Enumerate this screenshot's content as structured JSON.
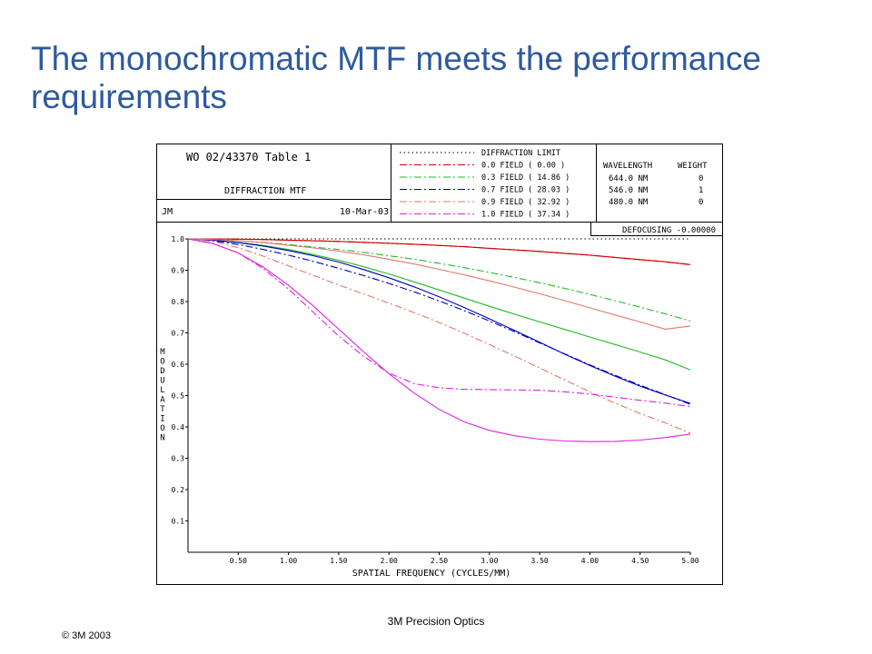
{
  "slide": {
    "title": "The monochromatic MTF meets the performance requirements",
    "footer_left": "© 3M 2003",
    "footer_center": "3M Precision Optics"
  },
  "plot_header": {
    "title": "WO 02/43370 Table 1",
    "subtitle": "DIFFRACTION MTF",
    "author": "JM",
    "date": "10-Mar-03",
    "defocusing": "DEFOCUSING -0.00000",
    "wavelength_header": "WAVELENGTH",
    "weight_header": "WEIGHT",
    "wavelengths": [
      {
        "wavelength": "644.0 NM",
        "weight": "0"
      },
      {
        "wavelength": "546.0 NM",
        "weight": "1"
      },
      {
        "wavelength": "480.0 NM",
        "weight": "0"
      }
    ],
    "legend": [
      {
        "label": "DIFFRACTION LIMIT",
        "color": "#000000"
      },
      {
        "label": "0.0 FIELD ( 0.00 )",
        "color": "#cc0000"
      },
      {
        "label": "0.3 FIELD ( 14.86 )",
        "color": "#22bb22"
      },
      {
        "label": "0.7 FIELD ( 28.03 )",
        "color": "#0000bb"
      },
      {
        "label": "0.9 FIELD ( 32.92 )",
        "color": "#e0786e"
      },
      {
        "label": "1.0 FIELD ( 37.34 )",
        "color": "#dd22dd"
      }
    ]
  },
  "chart_data": {
    "type": "line",
    "xlabel": "SPATIAL FREQUENCY (CYCLES/MM)",
    "ylabel": "MODULATION",
    "xlim": [
      0,
      5.0
    ],
    "ylim": [
      0,
      1.0
    ],
    "xticks": [
      "0.50",
      "1.00",
      "1.50",
      "2.00",
      "2.50",
      "3.00",
      "3.50",
      "4.00",
      "4.50",
      "5.00"
    ],
    "xtick_values": [
      0.5,
      1.0,
      1.5,
      2.0,
      2.5,
      3.0,
      3.5,
      4.0,
      4.5,
      5.0
    ],
    "yticks": [
      "0.1",
      "0.2",
      "0.3",
      "0.4",
      "0.5",
      "0.6",
      "0.7",
      "0.8",
      "0.9",
      "1.0"
    ],
    "ytick_values": [
      0.1,
      0.2,
      0.3,
      0.4,
      0.5,
      0.6,
      0.7,
      0.8,
      0.9,
      1.0
    ],
    "x": [
      0,
      0.25,
      0.5,
      0.75,
      1.0,
      1.25,
      1.5,
      1.75,
      2.0,
      2.25,
      2.5,
      2.75,
      3.0,
      3.25,
      3.5,
      3.75,
      4.0,
      4.25,
      4.5,
      4.75,
      5.0
    ],
    "series": [
      {
        "name": "DIFFRACTION LIMIT",
        "color": "#000000",
        "style": "dotted",
        "values": [
          1.0,
          1.0,
          1.0,
          1.0,
          1.0,
          1.0,
          1.0,
          1.0,
          1.0,
          1.0,
          1.0,
          1.0,
          1.0,
          1.0,
          1.0,
          1.0,
          1.0,
          1.0,
          1.0,
          1.0,
          1.0
        ]
      },
      {
        "name": "0.0 FIELD ( 0.00 ) tangential",
        "color": "#cc0000",
        "style": "solid",
        "values": [
          1.0,
          1.0,
          0.999,
          0.998,
          0.996,
          0.994,
          0.992,
          0.989,
          0.986,
          0.983,
          0.979,
          0.975,
          0.97,
          0.965,
          0.96,
          0.954,
          0.948,
          0.941,
          0.934,
          0.927,
          0.918
        ]
      },
      {
        "name": "0.0 FIELD ( 0.00 ) sagittal",
        "color": "#cc0000",
        "style": "dashdot",
        "values": [
          1.0,
          1.0,
          0.999,
          0.998,
          0.996,
          0.994,
          0.992,
          0.989,
          0.986,
          0.983,
          0.979,
          0.975,
          0.97,
          0.965,
          0.96,
          0.954,
          0.948,
          0.941,
          0.934,
          0.927,
          0.918
        ]
      },
      {
        "name": "0.3 FIELD ( 14.86 ) tangential",
        "color": "#22bb22",
        "style": "solid",
        "values": [
          1.0,
          0.996,
          0.989,
          0.979,
          0.966,
          0.95,
          0.932,
          0.911,
          0.888,
          0.863,
          0.837,
          0.811,
          0.785,
          0.76,
          0.735,
          0.711,
          0.687,
          0.663,
          0.639,
          0.614,
          0.582
        ]
      },
      {
        "name": "0.3 FIELD ( 14.86 ) sagittal",
        "color": "#22bb22",
        "style": "dashdot",
        "values": [
          1.0,
          0.998,
          0.994,
          0.989,
          0.982,
          0.974,
          0.966,
          0.957,
          0.946,
          0.935,
          0.922,
          0.908,
          0.893,
          0.877,
          0.86,
          0.842,
          0.823,
          0.803,
          0.782,
          0.761,
          0.738
        ]
      },
      {
        "name": "0.7 FIELD ( 28.03 ) tangential",
        "color": "#0000bb",
        "style": "solid",
        "values": [
          1.0,
          0.996,
          0.988,
          0.977,
          0.963,
          0.946,
          0.926,
          0.902,
          0.876,
          0.847,
          0.815,
          0.781,
          0.745,
          0.708,
          0.67,
          0.632,
          0.596,
          0.562,
          0.53,
          0.502,
          0.475
        ]
      },
      {
        "name": "0.7 FIELD ( 28.03 ) sagittal",
        "color": "#0000bb",
        "style": "dashdot",
        "values": [
          1.0,
          0.994,
          0.982,
          0.966,
          0.948,
          0.928,
          0.906,
          0.883,
          0.858,
          0.831,
          0.802,
          0.771,
          0.738,
          0.704,
          0.668,
          0.633,
          0.598,
          0.565,
          0.533,
          0.503,
          0.472
        ]
      },
      {
        "name": "0.9 FIELD ( 32.92 ) tangential",
        "color": "#e0786e",
        "style": "solid",
        "values": [
          1.0,
          0.998,
          0.994,
          0.988,
          0.98,
          0.971,
          0.961,
          0.949,
          0.935,
          0.92,
          0.903,
          0.885,
          0.866,
          0.846,
          0.825,
          0.803,
          0.78,
          0.757,
          0.735,
          0.712,
          0.722
        ]
      },
      {
        "name": "0.9 FIELD ( 32.92 ) sagittal",
        "color": "#e0786e",
        "style": "dashdot",
        "values": [
          1.0,
          0.992,
          0.972,
          0.945,
          0.914,
          0.883,
          0.853,
          0.824,
          0.795,
          0.765,
          0.733,
          0.699,
          0.663,
          0.626,
          0.588,
          0.55,
          0.512,
          0.476,
          0.443,
          0.413,
          0.38
        ]
      },
      {
        "name": "1.0 FIELD ( 37.34 ) tangential",
        "color": "#dd22dd",
        "style": "solid",
        "values": [
          1.0,
          0.985,
          0.955,
          0.91,
          0.852,
          0.785,
          0.712,
          0.639,
          0.57,
          0.508,
          0.456,
          0.416,
          0.389,
          0.372,
          0.361,
          0.355,
          0.353,
          0.354,
          0.358,
          0.366,
          0.377
        ]
      },
      {
        "name": "1.0 FIELD ( 37.34 ) sagittal",
        "color": "#dd22dd",
        "style": "dashdot",
        "values": [
          1.0,
          0.985,
          0.955,
          0.905,
          0.84,
          0.765,
          0.69,
          0.625,
          0.572,
          0.538,
          0.525,
          0.52,
          0.519,
          0.518,
          0.517,
          0.512,
          0.505,
          0.495,
          0.485,
          0.476,
          0.465
        ]
      }
    ]
  }
}
